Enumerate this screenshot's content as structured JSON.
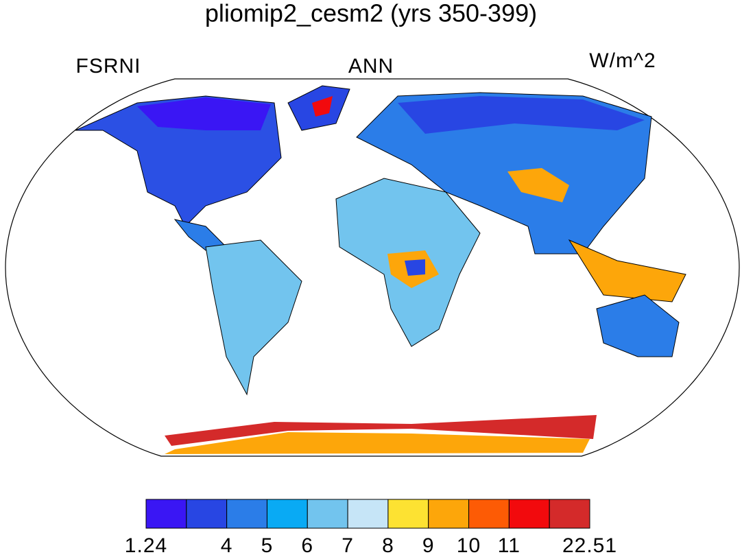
{
  "title": "pliomip2_cesm2 (yrs 350-399)",
  "left_label": "FSRNI",
  "center_label": "ANN",
  "right_label": "W/m^2",
  "colorbar": {
    "colors": [
      "#3a16f4",
      "#2846e3",
      "#2b7de8",
      "#09aaf4",
      "#72c4ee",
      "#c6e5f7",
      "#fde232",
      "#fda60a",
      "#fd5b05",
      "#f20a0d",
      "#d42a2a"
    ],
    "labels": [
      "1.24",
      null,
      "4",
      "5",
      "6",
      "7",
      "8",
      "9",
      "10",
      "11",
      null,
      "22.51"
    ]
  }
}
